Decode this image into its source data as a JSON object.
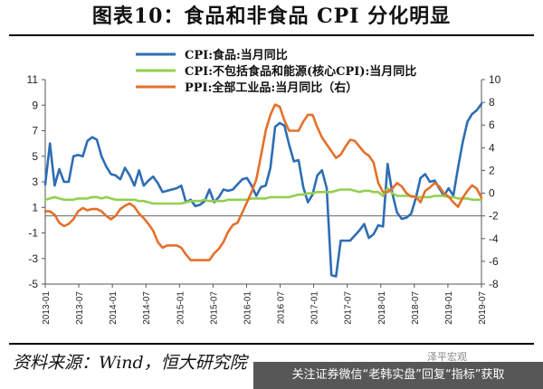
{
  "title": "图表10：食品和非食品 CPI 分化明显",
  "source": "资料来源：Wind，恒大研究院",
  "watermark": {
    "text": "关注证券微信“老韩实盘”回复“指标”获取",
    "extra": "泽平宏观"
  },
  "chart_data": {
    "type": "line",
    "left_axis": {
      "ylim": [
        -5,
        11
      ],
      "ticks": [
        "11",
        "9",
        "7",
        "5",
        "3",
        "1",
        "-1",
        "-3",
        "-5"
      ]
    },
    "right_axis": {
      "ylim": [
        -8,
        10
      ],
      "ticks": [
        "10",
        "8",
        "6",
        "4",
        "2",
        "0",
        "-2",
        "-4",
        "-6",
        "-8"
      ]
    },
    "x_ticks": [
      "2013-01",
      "2013-07",
      "2014-01",
      "2014-07",
      "2015-01",
      "2015-07",
      "2016-01",
      "2016 07",
      "2017-01",
      "2017-07",
      "2018-01",
      "2018-07",
      "2019-01",
      "2019-07"
    ],
    "colors": {
      "food": "#2e6db4",
      "core": "#92d050",
      "ppi": "#e3712b"
    },
    "series": [
      {
        "name": "CPI:食品:当月同比",
        "axis": "left",
        "values": [
          2.8,
          6.0,
          2.7,
          4.0,
          3.0,
          3.0,
          5.0,
          5.1,
          5.0,
          6.2,
          6.5,
          6.3,
          5.0,
          4.2,
          3.6,
          3.5,
          3.2,
          4.1,
          3.5,
          2.7,
          3.9,
          2.7,
          3.1,
          3.4,
          2.9,
          2.2,
          2.3,
          2.4,
          2.5,
          2.7,
          1.4,
          1.6,
          1.1,
          1.2,
          1.5,
          2.4,
          1.4,
          1.8,
          2.4,
          2.3,
          2.4,
          2.8,
          3.2,
          3.3,
          2.7,
          1.9,
          2.6,
          2.7,
          4.1,
          7.3,
          7.6,
          7.4,
          5.9,
          4.6,
          4.7,
          2.6,
          1.4,
          2.0,
          3.5,
          3.9,
          2.5,
          -4.3,
          -4.4,
          -1.6,
          -1.6,
          -1.6,
          -1.2,
          -0.8,
          -0.3,
          -1.4,
          -1.1,
          -0.4,
          -0.5,
          4.4,
          2.1,
          0.6,
          0.1,
          0.2,
          0.5,
          1.7,
          3.3,
          3.6,
          3.0,
          3.1,
          2.5,
          1.9,
          2.5,
          1.9,
          4.1,
          6.1,
          7.7,
          8.3,
          8.6,
          9.1
        ]
      },
      {
        "name": "CPI:不包括食品和能源(核心CPI):当月同比",
        "axis": "left",
        "values": [
          1.6,
          1.7,
          1.8,
          1.7,
          1.6,
          1.6,
          1.6,
          1.7,
          1.7,
          1.7,
          1.8,
          1.8,
          1.7,
          1.8,
          1.7,
          1.6,
          1.6,
          1.6,
          1.6,
          1.6,
          1.5,
          1.5,
          1.4,
          1.3,
          1.3,
          1.3,
          1.3,
          1.3,
          1.3,
          1.3,
          1.4,
          1.5,
          1.5,
          1.5,
          1.6,
          1.5,
          1.5,
          1.5,
          1.5,
          1.6,
          1.6,
          1.6,
          1.6,
          1.6,
          1.7,
          1.7,
          1.7,
          1.7,
          1.8,
          1.8,
          1.8,
          1.8,
          1.8,
          1.9,
          2.0,
          2.0,
          2.1,
          2.1,
          2.2,
          2.2,
          2.2,
          2.2,
          2.3,
          2.4,
          2.4,
          2.4,
          2.3,
          2.2,
          2.3,
          2.3,
          2.2,
          2.2,
          1.9,
          2.5,
          2.1,
          1.9,
          1.9,
          1.9,
          1.9,
          1.8,
          1.8,
          1.8,
          1.8,
          1.9,
          1.9,
          1.9,
          1.8,
          1.8,
          1.7,
          1.7,
          1.7,
          1.6,
          1.6,
          1.6
        ]
      },
      {
        "name": "PPI:全部工业品:当月同比（右）",
        "axis": "right",
        "values": [
          -1.6,
          -1.6,
          -1.9,
          -2.6,
          -2.9,
          -2.7,
          -2.3,
          -1.6,
          -1.3,
          -1.5,
          -1.4,
          -1.4,
          -1.6,
          -2.0,
          -2.3,
          -2.0,
          -1.4,
          -1.1,
          -0.9,
          -1.2,
          -1.8,
          -2.2,
          -2.7,
          -3.3,
          -4.3,
          -4.8,
          -4.6,
          -4.6,
          -4.6,
          -4.8,
          -5.4,
          -5.9,
          -5.9,
          -5.9,
          -5.9,
          -5.9,
          -5.3,
          -4.9,
          -4.3,
          -3.4,
          -2.8,
          -2.6,
          -1.7,
          -0.8,
          0.1,
          1.2,
          3.3,
          5.5,
          6.9,
          7.8,
          7.6,
          6.4,
          5.5,
          5.5,
          5.5,
          6.3,
          6.9,
          6.9,
          5.8,
          4.9,
          4.3,
          3.7,
          3.1,
          3.4,
          4.1,
          4.7,
          4.6,
          4.1,
          3.6,
          3.3,
          2.7,
          0.9,
          0.1,
          0.1,
          0.4,
          0.9,
          0.6,
          0.0,
          -0.3,
          -0.3,
          -0.8,
          0.2,
          0.5,
          0.9,
          0.6,
          0.0,
          -0.3,
          -0.8,
          -1.2,
          -0.4,
          0.2,
          0.7,
          0.4,
          -0.4
        ]
      }
    ]
  }
}
